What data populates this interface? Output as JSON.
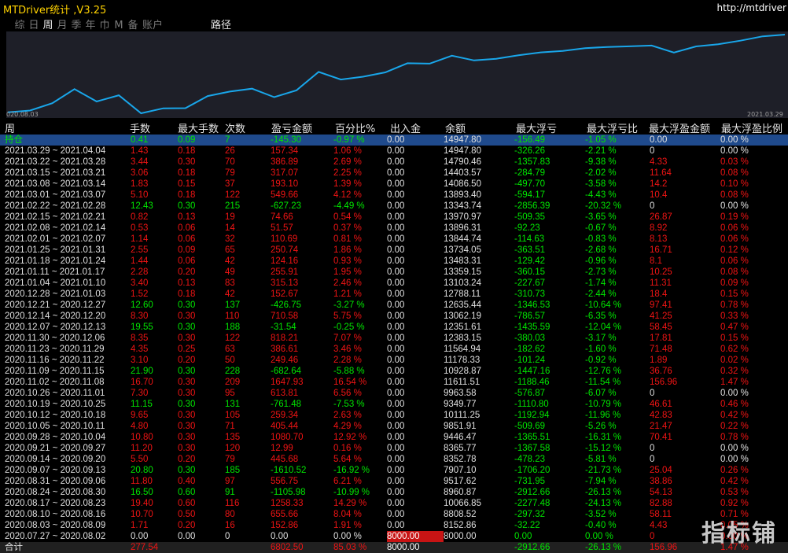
{
  "app": {
    "title": "MTDriver统计 ,V3.25",
    "url": "http://mtdriver"
  },
  "tabs": [
    "综",
    "日",
    "周",
    "月",
    "季",
    "年",
    "巾",
    "M",
    "备",
    "账户"
  ],
  "active_tab": "周",
  "extra_tab": "路径",
  "chart": {
    "start_label": "020.08.03",
    "end_label": "2021.03.29",
    "line_color": "#19a6ea",
    "values": [
      8000.0,
      8152.86,
      8808.52,
      10066.85,
      8960.87,
      9517.62,
      7907.1,
      8352.78,
      8365.77,
      9446.47,
      9851.91,
      10111.25,
      9349.77,
      9963.58,
      11611.51,
      10928.87,
      11178.33,
      11564.94,
      12383.15,
      12351.61,
      13062.19,
      12635.44,
      12788.11,
      13103.24,
      13359.15,
      13483.31,
      13734.05,
      13844.74,
      13896.31,
      13970.97,
      13343.74,
      13893.4,
      14086.5,
      14403.57,
      14790.46,
      14947.8
    ]
  },
  "columns": [
    "周",
    "手数",
    "最大手数",
    "次数",
    "盈亏金额",
    "百分比%",
    "出入金",
    "余额",
    "最大浮亏",
    "最大浮亏比",
    "最大浮盈金额",
    "最大浮盈比例"
  ],
  "rows": [
    {
      "c": "g",
      "cells": [
        "持仓",
        "0.41",
        "0.09",
        "7",
        "-145.30",
        "-0.97 %",
        "0.00",
        "14947.80",
        "-156.49",
        "-1.05 %",
        "0.00",
        "0.00 %"
      ],
      "sel": true,
      "pos": false,
      "pc": "w"
    },
    {
      "c": "r",
      "cells": [
        "2021.03.29 ~ 2021.04.04",
        "1.43",
        "0.18",
        "26",
        "157.34",
        "1.06 %",
        "0.00",
        "14947.80",
        "-326.26",
        "-2.21 %",
        "0",
        "0.00 %"
      ],
      "pos": false,
      "pc": "w"
    },
    {
      "c": "r",
      "cells": [
        "2021.03.22 ~ 2021.03.28",
        "3.44",
        "0.30",
        "70",
        "386.89",
        "2.69 %",
        "0.00",
        "14790.46",
        "-1357.83",
        "-9.38 %",
        "4.33",
        "0.03 %"
      ]
    },
    {
      "c": "r",
      "cells": [
        "2021.03.15 ~ 2021.03.21",
        "3.06",
        "0.18",
        "79",
        "317.07",
        "2.25 %",
        "0.00",
        "14403.57",
        "-284.79",
        "-2.02 %",
        "11.64",
        "0.08 %"
      ]
    },
    {
      "c": "r",
      "cells": [
        "2021.03.08 ~ 2021.03.14",
        "1.83",
        "0.15",
        "37",
        "193.10",
        "1.39 %",
        "0.00",
        "14086.50",
        "-497.70",
        "-3.58 %",
        "14.2",
        "0.10 %"
      ]
    },
    {
      "c": "r",
      "cells": [
        "2021.03.01 ~ 2021.03.07",
        "5.10",
        "0.18",
        "122",
        "549.66",
        "4.12 %",
        "0.00",
        "13893.40",
        "-594.17",
        "-4.43 %",
        "10.4",
        "0.08 %"
      ]
    },
    {
      "c": "g",
      "cells": [
        "2021.02.22 ~ 2021.02.28",
        "12.43",
        "0.30",
        "215",
        "-627.23",
        "-4.49 %",
        "0.00",
        "13343.74",
        "-2856.39",
        "-20.32 %",
        "0",
        "0.00 %"
      ],
      "pc": "w"
    },
    {
      "c": "r",
      "cells": [
        "2021.02.15 ~ 2021.02.21",
        "0.82",
        "0.13",
        "19",
        "74.66",
        "0.54 %",
        "0.00",
        "13970.97",
        "-509.35",
        "-3.65 %",
        "26.87",
        "0.19 %"
      ]
    },
    {
      "c": "r",
      "cells": [
        "2021.02.08 ~ 2021.02.14",
        "0.53",
        "0.06",
        "14",
        "51.57",
        "0.37 %",
        "0.00",
        "13896.31",
        "-92.23",
        "-0.67 %",
        "8.92",
        "0.06 %"
      ]
    },
    {
      "c": "r",
      "cells": [
        "2021.02.01 ~ 2021.02.07",
        "1.14",
        "0.06",
        "32",
        "110.69",
        "0.81 %",
        "0.00",
        "13844.74",
        "-114.63",
        "-0.83 %",
        "8.13",
        "0.06 %"
      ]
    },
    {
      "c": "r",
      "cells": [
        "2021.01.25 ~ 2021.01.31",
        "2.55",
        "0.09",
        "65",
        "250.74",
        "1.86 %",
        "0.00",
        "13734.05",
        "-363.51",
        "-2.68 %",
        "16.71",
        "0.12 %"
      ]
    },
    {
      "c": "r",
      "cells": [
        "2021.01.18 ~ 2021.01.24",
        "1.44",
        "0.06",
        "42",
        "124.16",
        "0.93 %",
        "0.00",
        "13483.31",
        "-129.42",
        "-0.96 %",
        "8.1",
        "0.06 %"
      ]
    },
    {
      "c": "r",
      "cells": [
        "2021.01.11 ~ 2021.01.17",
        "2.28",
        "0.20",
        "49",
        "255.91",
        "1.95 %",
        "0.00",
        "13359.15",
        "-360.15",
        "-2.73 %",
        "10.25",
        "0.08 %"
      ]
    },
    {
      "c": "r",
      "cells": [
        "2021.01.04 ~ 2021.01.10",
        "3.40",
        "0.13",
        "83",
        "315.13",
        "2.46 %",
        "0.00",
        "13103.24",
        "-227.67",
        "-1.74 %",
        "11.31",
        "0.09 %"
      ]
    },
    {
      "c": "r",
      "cells": [
        "2020.12.28 ~ 2021.01.03",
        "1.52",
        "0.18",
        "42",
        "152.67",
        "1.21 %",
        "0.00",
        "12788.11",
        "-310.73",
        "-2.44 %",
        "18.4",
        "0.15 %"
      ]
    },
    {
      "c": "g",
      "cells": [
        "2020.12.21 ~ 2020.12.27",
        "12.60",
        "0.30",
        "137",
        "-426.75",
        "-3.27 %",
        "0.00",
        "12635.44",
        "-1346.53",
        "-10.64 %",
        "97.41",
        "0.78 %"
      ],
      "pc": "r"
    },
    {
      "c": "r",
      "cells": [
        "2020.12.14 ~ 2020.12.20",
        "8.30",
        "0.30",
        "110",
        "710.58",
        "5.75 %",
        "0.00",
        "13062.19",
        "-786.57",
        "-6.35 %",
        "41.25",
        "0.33 %"
      ]
    },
    {
      "c": "g",
      "cells": [
        "2020.12.07 ~ 2020.12.13",
        "19.55",
        "0.30",
        "188",
        "-31.54",
        "-0.25 %",
        "0.00",
        "12351.61",
        "-1435.59",
        "-12.04 %",
        "58.45",
        "0.47 %"
      ],
      "pc": "r"
    },
    {
      "c": "r",
      "cells": [
        "2020.11.30 ~ 2020.12.06",
        "8.35",
        "0.30",
        "122",
        "818.21",
        "7.07 %",
        "0.00",
        "12383.15",
        "-380.03",
        "-3.17 %",
        "17.81",
        "0.15 %"
      ]
    },
    {
      "c": "r",
      "cells": [
        "2020.11.23 ~ 2020.11.29",
        "4.35",
        "0.25",
        "63",
        "386.61",
        "3.46 %",
        "0.00",
        "11564.94",
        "-182.62",
        "-1.60 %",
        "71.48",
        "0.62 %"
      ]
    },
    {
      "c": "r",
      "cells": [
        "2020.11.16 ~ 2020.11.22",
        "3.10",
        "0.20",
        "50",
        "249.46",
        "2.28 %",
        "0.00",
        "11178.33",
        "-101.24",
        "-0.92 %",
        "1.89",
        "0.02 %"
      ]
    },
    {
      "c": "g",
      "cells": [
        "2020.11.09 ~ 2020.11.15",
        "21.90",
        "0.30",
        "228",
        "-682.64",
        "-5.88 %",
        "0.00",
        "10928.87",
        "-1447.16",
        "-12.76 %",
        "36.76",
        "0.32 %"
      ],
      "pc": "r"
    },
    {
      "c": "r",
      "cells": [
        "2020.11.02 ~ 2020.11.08",
        "16.70",
        "0.30",
        "209",
        "1647.93",
        "16.54 %",
        "0.00",
        "11611.51",
        "-1188.46",
        "-11.54 %",
        "156.96",
        "1.47 %"
      ]
    },
    {
      "c": "r",
      "cells": [
        "2020.10.26 ~ 2020.11.01",
        "7.30",
        "0.30",
        "95",
        "613.81",
        "6.56 %",
        "0.00",
        "9963.58",
        "-576.87",
        "-6.07 %",
        "0",
        "0.00 %"
      ],
      "pc": "w"
    },
    {
      "c": "g",
      "cells": [
        "2020.10.19 ~ 2020.10.25",
        "11.15",
        "0.30",
        "131",
        "-761.48",
        "-7.53 %",
        "0.00",
        "9349.77",
        "-1110.80",
        "-10.79 %",
        "46.61",
        "0.46 %"
      ],
      "pc": "r"
    },
    {
      "c": "r",
      "cells": [
        "2020.10.12 ~ 2020.10.18",
        "9.65",
        "0.30",
        "105",
        "259.34",
        "2.63 %",
        "0.00",
        "10111.25",
        "-1192.94",
        "-11.96 %",
        "42.83",
        "0.42 %"
      ]
    },
    {
      "c": "r",
      "cells": [
        "2020.10.05 ~ 2020.10.11",
        "4.80",
        "0.30",
        "71",
        "405.44",
        "4.29 %",
        "0.00",
        "9851.91",
        "-509.69",
        "-5.26 %",
        "21.47",
        "0.22 %"
      ]
    },
    {
      "c": "r",
      "cells": [
        "2020.09.28 ~ 2020.10.04",
        "10.80",
        "0.30",
        "135",
        "1080.70",
        "12.92 %",
        "0.00",
        "9446.47",
        "-1365.51",
        "-16.31 %",
        "70.41",
        "0.78 %"
      ]
    },
    {
      "c": "r",
      "cells": [
        "2020.09.21 ~ 2020.09.27",
        "11.20",
        "0.30",
        "120",
        "12.99",
        "0.16 %",
        "0.00",
        "8365.77",
        "-1367.58",
        "-15.12 %",
        "0",
        "0.00 %"
      ],
      "pc": "w"
    },
    {
      "c": "r",
      "cells": [
        "2020.09.14 ~ 2020.09.20",
        "5.50",
        "0.20",
        "79",
        "445.68",
        "5.64 %",
        "0.00",
        "8352.78",
        "-478.23",
        "-5.81 %",
        "0",
        "0.00 %"
      ],
      "pc": "w"
    },
    {
      "c": "g",
      "cells": [
        "2020.09.07 ~ 2020.09.13",
        "20.80",
        "0.30",
        "185",
        "-1610.52",
        "-16.92 %",
        "0.00",
        "7907.10",
        "-1706.20",
        "-21.73 %",
        "25.04",
        "0.26 %"
      ],
      "pc": "r"
    },
    {
      "c": "r",
      "cells": [
        "2020.08.31 ~ 2020.09.06",
        "11.80",
        "0.40",
        "97",
        "556.75",
        "6.21 %",
        "0.00",
        "9517.62",
        "-731.95",
        "-7.94 %",
        "38.86",
        "0.42 %"
      ]
    },
    {
      "c": "g",
      "cells": [
        "2020.08.24 ~ 2020.08.30",
        "16.50",
        "0.60",
        "91",
        "-1105.98",
        "-10.99 %",
        "0.00",
        "8960.87",
        "-2912.66",
        "-26.13 %",
        "54.13",
        "0.53 %"
      ],
      "pc": "r"
    },
    {
      "c": "r",
      "cells": [
        "2020.08.17 ~ 2020.08.23",
        "19.40",
        "0.60",
        "116",
        "1258.33",
        "14.29 %",
        "0.00",
        "10066.85",
        "-2277.48",
        "-24.13 %",
        "82.88",
        "0.92 %"
      ]
    },
    {
      "c": "r",
      "cells": [
        "2020.08.10 ~ 2020.08.16",
        "10.70",
        "0.50",
        "80",
        "655.66",
        "8.04 %",
        "0.00",
        "8808.52",
        "-297.32",
        "-3.52 %",
        "58.11",
        "0.71 %"
      ]
    },
    {
      "c": "r",
      "cells": [
        "2020.08.03 ~ 2020.08.09",
        "1.71",
        "0.20",
        "16",
        "152.86",
        "1.91 %",
        "0.00",
        "8152.86",
        "-32.22",
        "-0.40 %",
        "4.43",
        "0.05 %"
      ]
    },
    {
      "c": "w",
      "cells": [
        "2020.07.27 ~ 2020.08.02",
        "0.00",
        "0.00",
        "0",
        "0.00",
        "0.00 %",
        "8000.00",
        "8000.00",
        "0.00",
        "0.00 %",
        "0",
        "0.00 %"
      ],
      "hl": true
    },
    {
      "c": "r",
      "cells": [
        "合计",
        "277.54",
        "",
        "",
        "6802.50",
        "85.03 %",
        "8000.00",
        "",
        "-2912.66",
        "-26.13 %",
        "156.96",
        "1.47 %"
      ],
      "tot": true
    }
  ],
  "watermark": "指标铺"
}
